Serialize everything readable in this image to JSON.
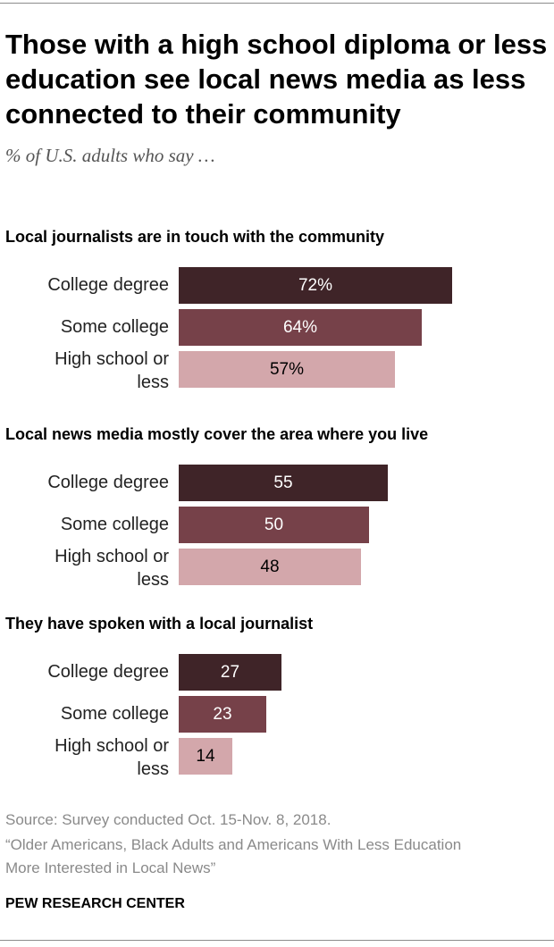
{
  "title": "Those with a high school diploma or less education see local news media as less connected to their community",
  "subtitle": "% of U.S. adults who say …",
  "chart_data": {
    "type": "bar",
    "orientation": "horizontal",
    "xlim": [
      0,
      100
    ],
    "categories": [
      "College degree",
      "Some college",
      "High school or less"
    ],
    "colors": [
      "#3f2428",
      "#764149",
      "#d3a7ab"
    ],
    "label_colors": [
      "#ffffff",
      "#ffffff",
      "#000000"
    ],
    "panels": [
      {
        "title": "Local journalists are in touch with the community",
        "values": [
          72,
          64,
          57
        ],
        "labels": [
          "72%",
          "64%",
          "57%"
        ]
      },
      {
        "title": "Local news media mostly cover the area where you live",
        "values": [
          55,
          50,
          48
        ],
        "labels": [
          "55",
          "50",
          "48"
        ]
      },
      {
        "title": "They have spoken with a local journalist",
        "values": [
          27,
          23,
          14
        ],
        "labels": [
          "27",
          "23",
          "14"
        ]
      }
    ]
  },
  "footer": {
    "source": "Source: Survey conducted Oct. 15-Nov. 8, 2018.",
    "report_line1": "“Older Americans, Black Adults and Americans With Less Education",
    "report_line2": "More Interested in Local News”",
    "brand": "PEW RESEARCH CENTER"
  }
}
